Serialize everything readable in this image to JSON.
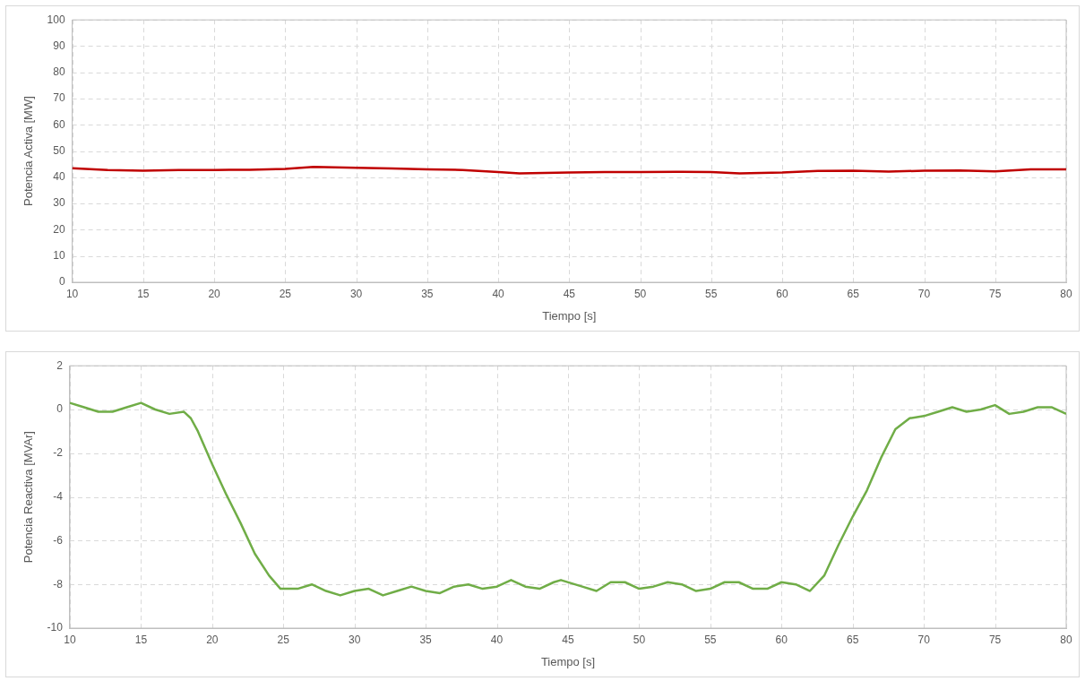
{
  "chart_data": [
    {
      "type": "line",
      "xlabel": "Tiempo [s]",
      "ylabel": "Potencia Activa [MW]",
      "xlim": [
        10,
        80
      ],
      "xticks": [
        10,
        15,
        20,
        25,
        30,
        35,
        40,
        45,
        50,
        55,
        60,
        65,
        70,
        75,
        80
      ],
      "ylim": [
        0,
        100
      ],
      "yticks": [
        0,
        10,
        20,
        30,
        40,
        50,
        60,
        70,
        80,
        90,
        100
      ],
      "grid": true,
      "legend": false,
      "marker": "none",
      "line_style": "solid",
      "series": [
        {
          "color": "#c00000",
          "x": [
            10,
            12.5,
            15,
            17.5,
            20,
            22.5,
            25,
            27,
            30,
            32.5,
            35,
            37.5,
            40,
            41.5,
            45,
            47.5,
            50,
            52.5,
            55,
            57,
            60,
            62.5,
            65,
            67.5,
            70,
            72.5,
            75,
            77.5,
            80
          ],
          "values": [
            43.5,
            42.8,
            42.5,
            42.8,
            42.8,
            42.9,
            43.2,
            44,
            43.6,
            43.4,
            43,
            42.8,
            42,
            41.5,
            41.8,
            42,
            42,
            42.1,
            42,
            41.5,
            41.8,
            42.4,
            42.5,
            42.2,
            42.5,
            42.6,
            42.3,
            43,
            43
          ]
        }
      ]
    },
    {
      "type": "line",
      "xlabel": "Tiempo [s]",
      "ylabel": "Potencia Reactiva [MVAr]",
      "xlim": [
        10,
        80
      ],
      "xticks": [
        10,
        15,
        20,
        25,
        30,
        35,
        40,
        45,
        50,
        55,
        60,
        65,
        70,
        75,
        80
      ],
      "ylim": [
        -10,
        2
      ],
      "yticks": [
        -10,
        -8,
        -6,
        -4,
        -2,
        0,
        2
      ],
      "grid": true,
      "legend": false,
      "marker": "none",
      "line_style": "solid",
      "series": [
        {
          "color": "#70ad47",
          "x": [
            10,
            11,
            12,
            13,
            14,
            15,
            16,
            17,
            18,
            18.5,
            19,
            20,
            21,
            22,
            23,
            24,
            24.8,
            26,
            27,
            28,
            29,
            30,
            31,
            32,
            33,
            34,
            35,
            36,
            37,
            38,
            39,
            40,
            41,
            42,
            43,
            44,
            44.5,
            46,
            47,
            48,
            49,
            50,
            51,
            52,
            53,
            54,
            55,
            56,
            57,
            58,
            59,
            60,
            61,
            62,
            63,
            64,
            65,
            66,
            67,
            68,
            69,
            70,
            71,
            72,
            73,
            74,
            75,
            76,
            77,
            78,
            79,
            80
          ],
          "values": [
            0.3,
            0.1,
            -0.1,
            -0.1,
            0.1,
            0.3,
            0.0,
            -0.2,
            -0.1,
            -0.4,
            -1.0,
            -2.5,
            -3.9,
            -5.2,
            -6.6,
            -7.6,
            -8.2,
            -8.2,
            -8.0,
            -8.3,
            -8.5,
            -8.3,
            -8.2,
            -8.5,
            -8.3,
            -8.1,
            -8.3,
            -8.4,
            -8.1,
            -8.0,
            -8.2,
            -8.1,
            -7.8,
            -8.1,
            -8.2,
            -7.9,
            -7.8,
            -8.1,
            -8.3,
            -7.9,
            -7.9,
            -8.2,
            -8.1,
            -7.9,
            -8.0,
            -8.3,
            -8.2,
            -7.9,
            -7.9,
            -8.2,
            -8.2,
            -7.9,
            -8.0,
            -8.3,
            -7.6,
            -6.2,
            -4.9,
            -3.7,
            -2.2,
            -0.9,
            -0.4,
            -0.3,
            -0.1,
            0.1,
            -0.1,
            0.0,
            0.2,
            -0.2,
            -0.1,
            0.1,
            0.1,
            -0.2
          ]
        }
      ]
    }
  ]
}
